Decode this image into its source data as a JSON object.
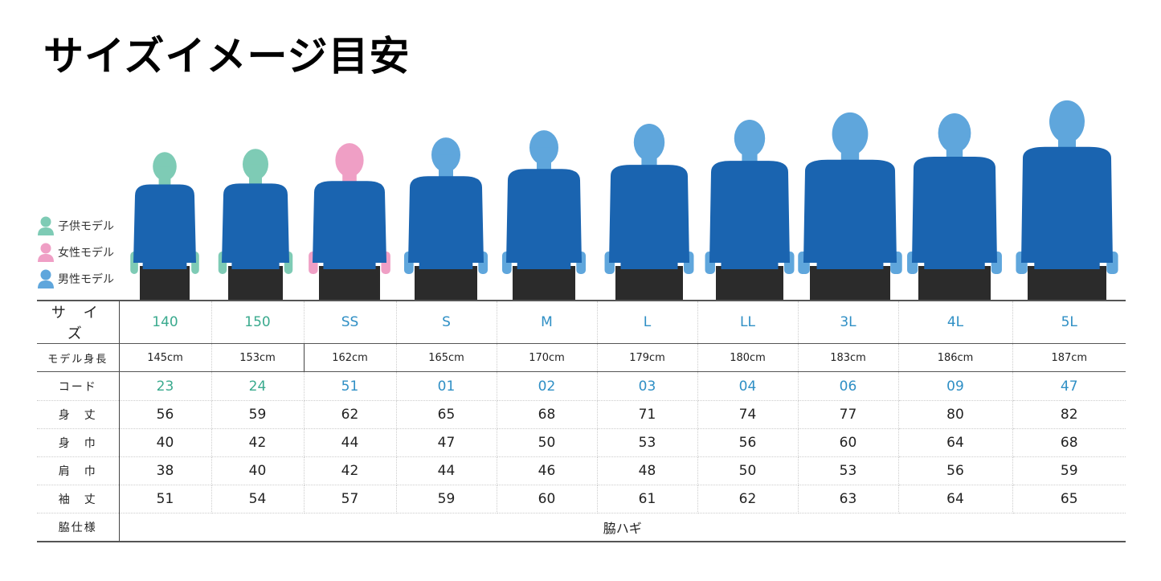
{
  "title": "サイズイメージ目安",
  "legend": [
    {
      "label": "子供モデル",
      "color": "#7ecbb5"
    },
    {
      "label": "女性モデル",
      "color": "#ef9fc5"
    },
    {
      "label": "男性モデル",
      "color": "#5fa6dc"
    }
  ],
  "colors": {
    "shirt": "#1a64b0",
    "shorts": "#2b2b2b",
    "size_child": "#3aaa8e",
    "size_adult": "#2f8fc5"
  },
  "table": {
    "sizes_label": "サ イ ズ",
    "sizes": [
      "140",
      "150",
      "SS",
      "S",
      "M",
      "L",
      "LL",
      "3L",
      "4L",
      "5L"
    ],
    "model_types": [
      "child",
      "child",
      "female",
      "male",
      "male",
      "male",
      "male",
      "male",
      "male",
      "male"
    ],
    "height_label": "モデル身長",
    "heights": [
      "145cm",
      "153cm",
      "162cm",
      "165cm",
      "170cm",
      "179cm",
      "180cm",
      "183cm",
      "186cm",
      "187cm"
    ],
    "code_label": "コード",
    "codes": [
      "23",
      "24",
      "51",
      "01",
      "02",
      "03",
      "04",
      "06",
      "09",
      "47"
    ],
    "rows": [
      {
        "label": "身　丈",
        "values": [
          "56",
          "59",
          "62",
          "65",
          "68",
          "71",
          "74",
          "77",
          "80",
          "82"
        ]
      },
      {
        "label": "身　巾",
        "values": [
          "40",
          "42",
          "44",
          "47",
          "50",
          "53",
          "56",
          "60",
          "64",
          "68"
        ]
      },
      {
        "label": "肩　巾",
        "values": [
          "38",
          "40",
          "42",
          "44",
          "46",
          "48",
          "50",
          "53",
          "56",
          "59"
        ]
      },
      {
        "label": "袖　丈",
        "values": [
          "51",
          "54",
          "57",
          "59",
          "60",
          "61",
          "62",
          "63",
          "64",
          "65"
        ]
      }
    ],
    "side_label": "脇仕様",
    "side_value": "脇ハギ"
  }
}
